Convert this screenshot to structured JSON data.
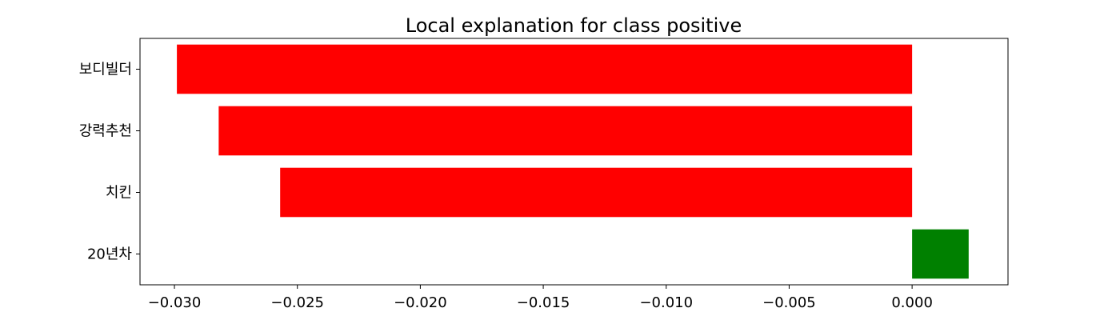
{
  "chart_data": {
    "type": "bar",
    "orientation": "horizontal",
    "title": "Local explanation for class positive",
    "xlabel": "",
    "ylabel": "",
    "categories": [
      "보디빌더",
      "강력추천",
      "치킨",
      "20년차"
    ],
    "values": [
      -0.0299,
      -0.0282,
      -0.0257,
      0.0023
    ],
    "bar_colors": [
      "#ff0000",
      "#ff0000",
      "#ff0000",
      "#008000"
    ],
    "xlim": [
      -0.0314,
      0.0039
    ],
    "xticks": [
      -0.03,
      -0.025,
      -0.02,
      -0.015,
      -0.01,
      -0.005,
      0.0
    ],
    "xtick_labels": [
      "−0.030",
      "−0.025",
      "−0.020",
      "−0.015",
      "−0.010",
      "−0.005",
      "0.000"
    ],
    "grid": false,
    "legend": "none"
  }
}
